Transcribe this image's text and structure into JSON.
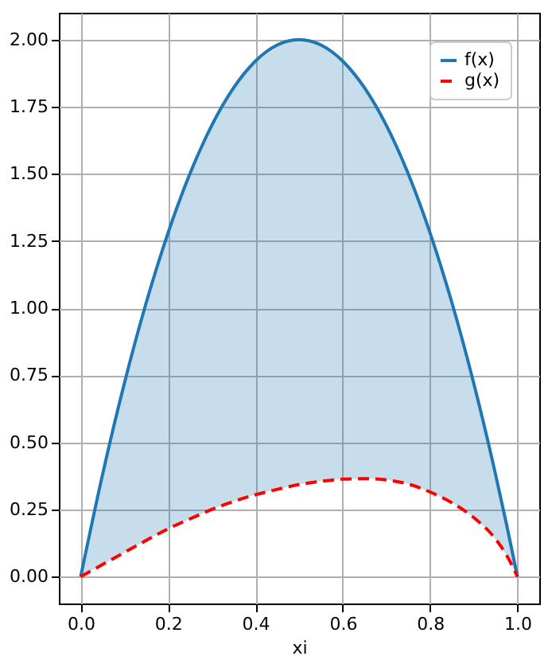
{
  "chart_data": {
    "type": "line",
    "xlabel": "xi",
    "x": [
      0,
      0.05,
      0.1,
      0.15,
      0.2,
      0.25,
      0.3,
      0.35,
      0.4,
      0.45,
      0.5,
      0.55,
      0.6,
      0.65,
      0.7,
      0.75,
      0.8,
      0.85,
      0.9,
      0.95,
      0.975,
      1
    ],
    "series": [
      {
        "name": "f(x)",
        "color": "#1f77b4",
        "line_style": "solid",
        "values": [
          0,
          0.38,
          0.72,
          1.02,
          1.28,
          1.5,
          1.68,
          1.82,
          1.92,
          1.98,
          2.0,
          1.98,
          1.92,
          1.82,
          1.68,
          1.5,
          1.28,
          1.02,
          0.72,
          0.38,
          0.195,
          0
        ],
        "lower": [
          0,
          0.045,
          0.09,
          0.135,
          0.178,
          0.215,
          0.25,
          0.28,
          0.305,
          0.325,
          0.343,
          0.355,
          0.363,
          0.365,
          0.36,
          0.345,
          0.315,
          0.275,
          0.22,
          0.14,
          0.08,
          0
        ],
        "upper": [
          0,
          0.38,
          0.72,
          1.02,
          1.28,
          1.5,
          1.68,
          1.82,
          1.92,
          1.98,
          2.0,
          1.98,
          1.92,
          1.82,
          1.68,
          1.5,
          1.28,
          1.02,
          0.72,
          0.38,
          0.195,
          0
        ]
      },
      {
        "name": "g(x)",
        "color": "#ff0000",
        "line_style": "dashed",
        "values": [
          0,
          0.045,
          0.09,
          0.135,
          0.178,
          0.215,
          0.25,
          0.28,
          0.305,
          0.325,
          0.343,
          0.355,
          0.363,
          0.365,
          0.36,
          0.345,
          0.315,
          0.275,
          0.22,
          0.14,
          0.08,
          0
        ]
      }
    ],
    "xlim": [
      -0.05,
      1.05
    ],
    "xticks": [
      {
        "value": 0,
        "label": "0.0"
      },
      {
        "value": 0.2,
        "label": "0.2"
      },
      {
        "value": 0.4,
        "label": "0.4"
      },
      {
        "value": 0.6,
        "label": "0.6"
      },
      {
        "value": 0.8,
        "label": "0.8"
      },
      {
        "value": 1,
        "label": "1.0"
      }
    ],
    "ylim": [
      -0.1,
      2.1
    ],
    "yticks": [
      {
        "value": 0,
        "label": "0.00"
      },
      {
        "value": 0.25,
        "label": "0.25"
      },
      {
        "value": 0.5,
        "label": "0.50"
      },
      {
        "value": 0.75,
        "label": "0.75"
      },
      {
        "value": 1,
        "label": "1.00"
      },
      {
        "value": 1.25,
        "label": "1.25"
      },
      {
        "value": 1.5,
        "label": "1.50"
      },
      {
        "value": 1.75,
        "label": "1.75"
      },
      {
        "value": 2,
        "label": "2.00"
      }
    ],
    "grid": true,
    "legend": "top right"
  }
}
